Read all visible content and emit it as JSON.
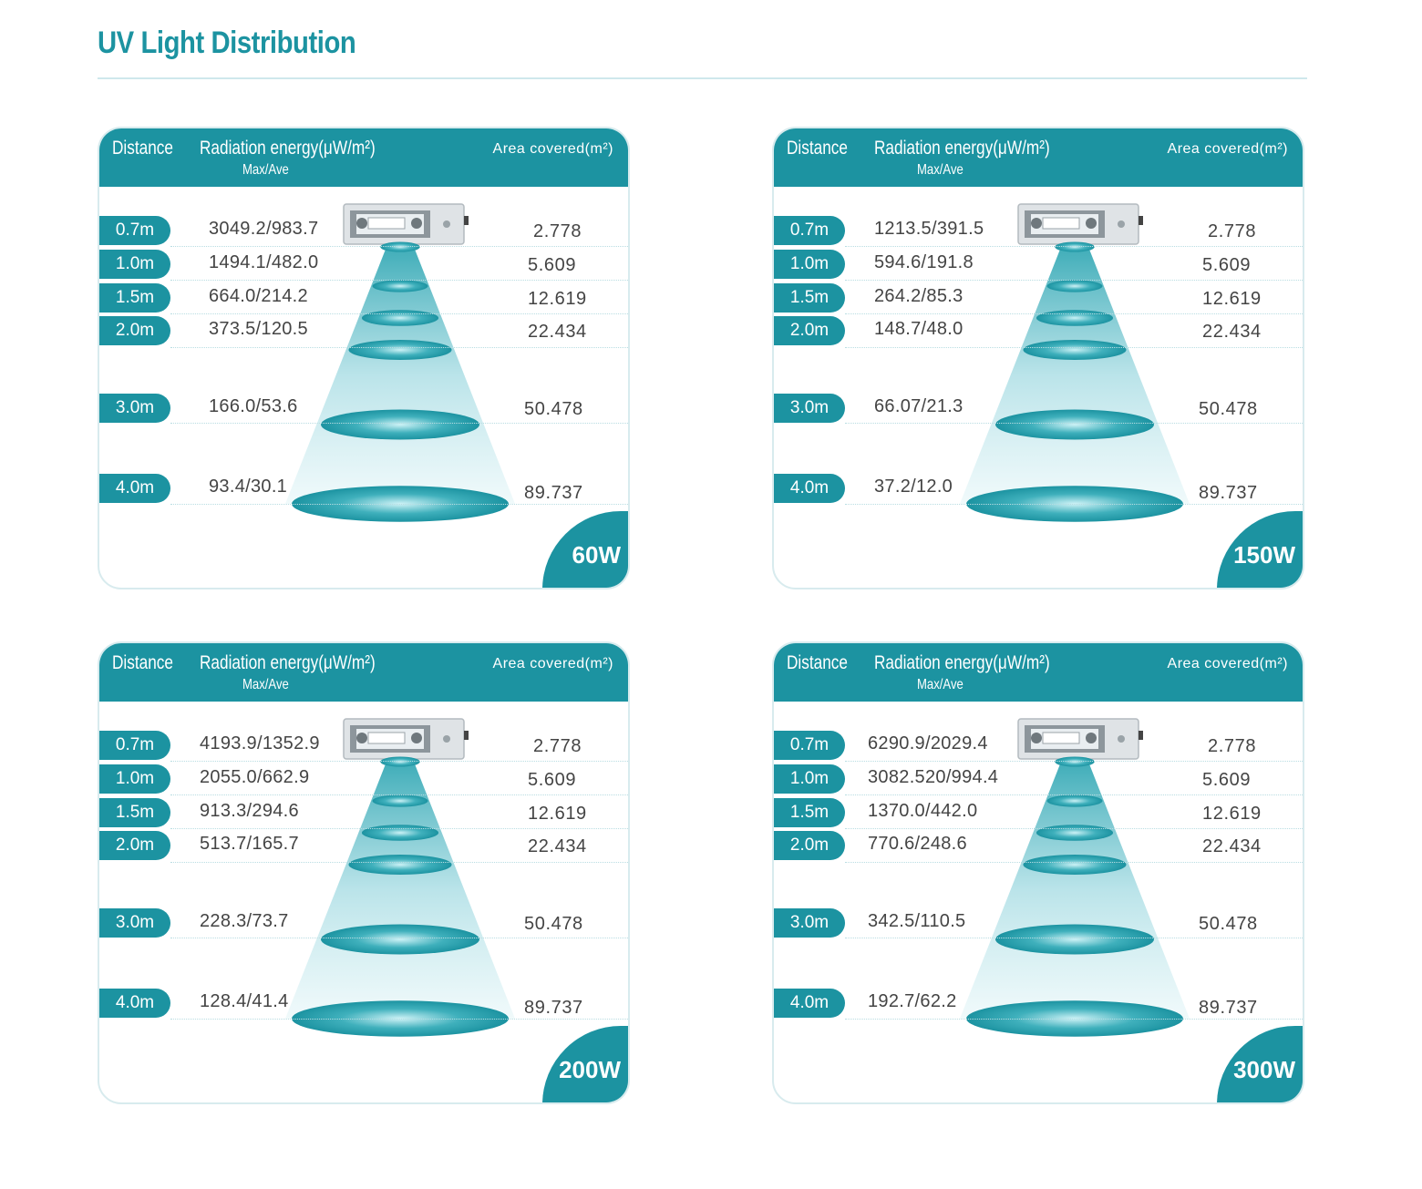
{
  "title": "UV Light Distribution",
  "header": {
    "distance": "Distance",
    "radiation": "Radiation energy(μW/m²)",
    "maxave": "Max/Ave",
    "area": "Area covered(m²)"
  },
  "panels": [
    {
      "power": "60W",
      "rows": [
        {
          "distance": "0.7m",
          "radiation": "3049.2/983.7",
          "area": "2.778"
        },
        {
          "distance": "1.0m",
          "radiation": "1494.1/482.0",
          "area": "5.609"
        },
        {
          "distance": "1.5m",
          "radiation": "664.0/214.2",
          "area": "12.619"
        },
        {
          "distance": "2.0m",
          "radiation": "373.5/120.5",
          "area": "22.434"
        },
        {
          "distance": "3.0m",
          "radiation": "166.0/53.6",
          "area": "50.478"
        },
        {
          "distance": "4.0m",
          "radiation": "93.4/30.1",
          "area": "89.737"
        }
      ]
    },
    {
      "power": "150W",
      "rows": [
        {
          "distance": "0.7m",
          "radiation": "1213.5/391.5",
          "area": "2.778"
        },
        {
          "distance": "1.0m",
          "radiation": "594.6/191.8",
          "area": "5.609"
        },
        {
          "distance": "1.5m",
          "radiation": "264.2/85.3",
          "area": "12.619"
        },
        {
          "distance": "2.0m",
          "radiation": "148.7/48.0",
          "area": "22.434"
        },
        {
          "distance": "3.0m",
          "radiation": "66.07/21.3",
          "area": "50.478"
        },
        {
          "distance": "4.0m",
          "radiation": "37.2/12.0",
          "area": "89.737"
        }
      ]
    },
    {
      "power": "200W",
      "rows": [
        {
          "distance": "0.7m",
          "radiation": "4193.9/1352.9",
          "area": "2.778"
        },
        {
          "distance": "1.0m",
          "radiation": "2055.0/662.9",
          "area": "5.609"
        },
        {
          "distance": "1.5m",
          "radiation": "913.3/294.6",
          "area": "12.619"
        },
        {
          "distance": "2.0m",
          "radiation": "513.7/165.7",
          "area": "22.434"
        },
        {
          "distance": "3.0m",
          "radiation": "228.3/73.7",
          "area": "50.478"
        },
        {
          "distance": "4.0m",
          "radiation": "128.4/41.4",
          "area": "89.737"
        }
      ]
    },
    {
      "power": "300W",
      "rows": [
        {
          "distance": "0.7m",
          "radiation": "6290.9/2029.4",
          "area": "2.778"
        },
        {
          "distance": "1.0m",
          "radiation": "3082.520/994.4",
          "area": "5.609"
        },
        {
          "distance": "1.5m",
          "radiation": "1370.0/442.0",
          "area": "12.619"
        },
        {
          "distance": "2.0m",
          "radiation": "770.6/248.6",
          "area": "22.434"
        },
        {
          "distance": "3.0m",
          "radiation": "342.5/110.5",
          "area": "50.478"
        },
        {
          "distance": "4.0m",
          "radiation": "192.7/62.2",
          "area": "89.737"
        }
      ]
    }
  ],
  "colors": {
    "accent": "#1c93a1",
    "beam": "#bfe6ec"
  }
}
